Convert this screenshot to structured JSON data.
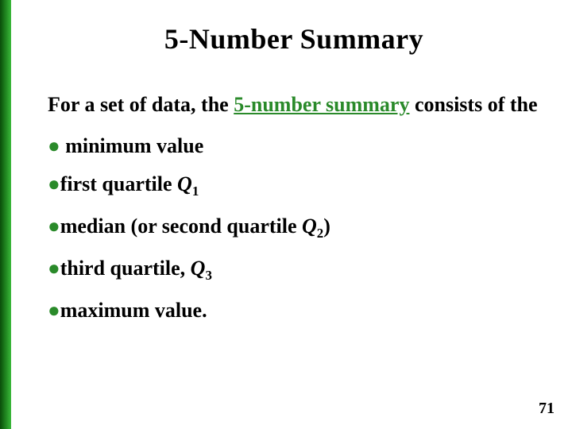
{
  "title": "5-Number Summary",
  "intro_prefix": "For a set of data, the ",
  "intro_term": "5-number summary",
  "intro_suffix": " consists of  the",
  "items": [
    {
      "text": "minimum value",
      "q": null,
      "paren": false,
      "suffix": "",
      "prefix_space": " "
    },
    {
      "text": "first quartile ",
      "q": "1",
      "paren": false,
      "suffix": "",
      "prefix_space": ""
    },
    {
      "text": "median (or second quartile ",
      "q": "2",
      "paren": true,
      "suffix": ")",
      "prefix_space": ""
    },
    {
      "text": "third quartile, ",
      "q": "3",
      "paren": false,
      "suffix": "",
      "prefix_space": ""
    },
    {
      "text": "maximum value.",
      "q": null,
      "paren": false,
      "suffix": "",
      "prefix_space": ""
    }
  ],
  "page_number": "71",
  "colors": {
    "bullet": "#2a8a2a",
    "term": "#2a8a2a",
    "text": "#000000",
    "background": "#ffffff"
  }
}
